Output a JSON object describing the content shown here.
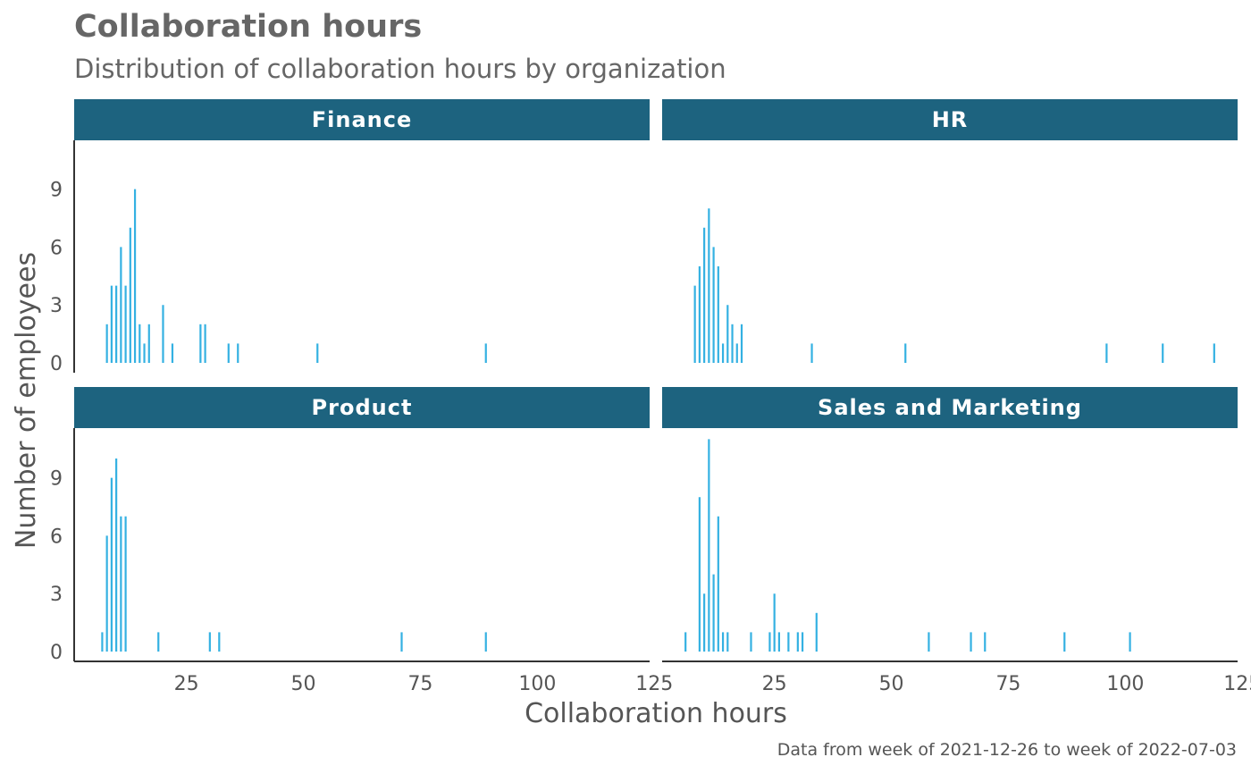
{
  "colors": {
    "strip": "#1d637f",
    "bar": "#34b1e2",
    "axis": "#333333",
    "text": "#666666"
  },
  "chart_data": {
    "type": "bar",
    "title": "Collaboration hours",
    "subtitle": "Distribution of collaboration hours by organization",
    "xlabel": "Collaboration hours",
    "ylabel": "Number of employees",
    "caption": "Data from week of 2021-12-26 to week of 2022-07-03",
    "xlim": [
      0,
      125
    ],
    "ylim": [
      0,
      12
    ],
    "x_ticks": [
      25,
      50,
      75,
      100,
      125
    ],
    "x_tick_labels": [
      "25",
      "50",
      "75",
      "100",
      "125"
    ],
    "y_ticks": [
      0,
      3,
      6,
      9
    ],
    "y_tick_labels": [
      "0",
      "3",
      "6",
      "9"
    ],
    "grid": false,
    "facets": [
      {
        "name": "Finance",
        "bars": [
          [
            8,
            2
          ],
          [
            9,
            4
          ],
          [
            10,
            4
          ],
          [
            11,
            6
          ],
          [
            12,
            4
          ],
          [
            13,
            7
          ],
          [
            14,
            9
          ],
          [
            15,
            2
          ],
          [
            16,
            1
          ],
          [
            17,
            2
          ],
          [
            20,
            3
          ],
          [
            22,
            1
          ],
          [
            28,
            2
          ],
          [
            29,
            2
          ],
          [
            34,
            1
          ],
          [
            36,
            1
          ],
          [
            53,
            1
          ],
          [
            89,
            1
          ]
        ]
      },
      {
        "name": "HR",
        "bars": [
          [
            8,
            4
          ],
          [
            9,
            5
          ],
          [
            10,
            7
          ],
          [
            11,
            8
          ],
          [
            12,
            6
          ],
          [
            13,
            5
          ],
          [
            14,
            1
          ],
          [
            15,
            3
          ],
          [
            16,
            2
          ],
          [
            17,
            1
          ],
          [
            18,
            2
          ],
          [
            33,
            1
          ],
          [
            53,
            1
          ],
          [
            96,
            1
          ],
          [
            108,
            1
          ],
          [
            119,
            1
          ]
        ]
      },
      {
        "name": "Product",
        "bars": [
          [
            7,
            1
          ],
          [
            8,
            6
          ],
          [
            9,
            9
          ],
          [
            10,
            10
          ],
          [
            11,
            7
          ],
          [
            12,
            7
          ],
          [
            19,
            1
          ],
          [
            30,
            1
          ],
          [
            32,
            1
          ],
          [
            71,
            1
          ],
          [
            89,
            1
          ]
        ]
      },
      {
        "name": "Sales and Marketing",
        "bars": [
          [
            6,
            1
          ],
          [
            9,
            8
          ],
          [
            10,
            3
          ],
          [
            11,
            11
          ],
          [
            12,
            4
          ],
          [
            13,
            7
          ],
          [
            14,
            1
          ],
          [
            15,
            1
          ],
          [
            20,
            1
          ],
          [
            24,
            1
          ],
          [
            25,
            3
          ],
          [
            26,
            1
          ],
          [
            28,
            1
          ],
          [
            30,
            1
          ],
          [
            31,
            1
          ],
          [
            34,
            2
          ],
          [
            58,
            1
          ],
          [
            67,
            1
          ],
          [
            70,
            1
          ],
          [
            87,
            1
          ],
          [
            101,
            1
          ]
        ]
      }
    ]
  }
}
